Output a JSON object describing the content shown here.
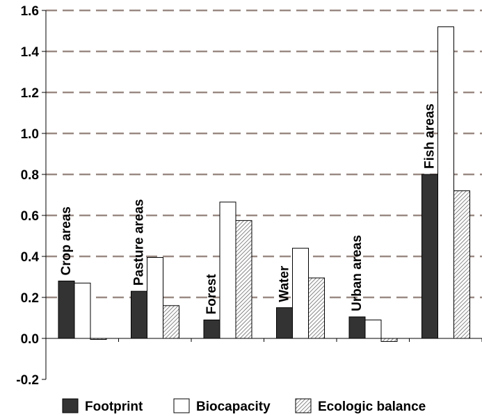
{
  "chart_data": {
    "type": "bar",
    "categories": [
      "Crop areas",
      "Pasture areas",
      "Forest",
      "Water",
      "Urban areas",
      "Fish areas"
    ],
    "series": [
      {
        "name": "Footprint",
        "values": [
          0.28,
          0.23,
          0.09,
          0.15,
          0.105,
          0.8
        ],
        "color": "#333333",
        "pattern": "solid"
      },
      {
        "name": "Biocapacity",
        "values": [
          0.27,
          0.395,
          0.665,
          0.44,
          0.09,
          1.52
        ],
        "color": "#ffffff",
        "pattern": "none"
      },
      {
        "name": "Ecologic balance",
        "values": [
          -0.005,
          0.16,
          0.575,
          0.295,
          -0.015,
          0.72
        ],
        "color": "#cfcfcf",
        "pattern": "hatch"
      }
    ],
    "ylim": [
      -0.2,
      1.6
    ],
    "yticks": [
      "-0.2",
      "0.0",
      "0.2",
      "0.4",
      "0.6",
      "0.8",
      "1.0",
      "1.2",
      "1.4",
      "1.6"
    ],
    "grid": true,
    "legend_position": "bottom",
    "title": "",
    "xlabel": "",
    "ylabel": ""
  }
}
